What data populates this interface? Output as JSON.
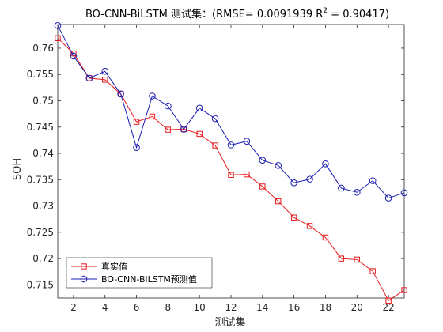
{
  "chart_data": {
    "type": "line",
    "title": "BO-CNN-BiLSTM 测试集：(RMSE= 0.0091939 R",
    "title_sup": "2",
    "title_tail": "  = 0.90417)",
    "xlabel": "测试集",
    "ylabel": "SOH",
    "xlim": [
      1,
      23
    ],
    "ylim": [
      0.7125,
      0.7645
    ],
    "x_ticks": [
      2,
      4,
      6,
      8,
      10,
      12,
      14,
      16,
      18,
      20,
      22
    ],
    "y_ticks": [
      0.715,
      0.72,
      0.725,
      0.73,
      0.735,
      0.74,
      0.745,
      0.75,
      0.755,
      0.76
    ],
    "y_tick_labels": [
      "0.715",
      "0.72",
      "0.725",
      "0.73",
      "0.735",
      "0.74",
      "0.745",
      "0.75",
      "0.755",
      "0.76"
    ],
    "x": [
      1,
      2,
      3,
      4,
      5,
      6,
      7,
      8,
      9,
      10,
      11,
      12,
      13,
      14,
      15,
      16,
      17,
      18,
      19,
      20,
      21,
      22,
      23
    ],
    "legend_position": "bottom-left",
    "grid": false,
    "series": [
      {
        "name": "真实值",
        "color": "#e8191c",
        "marker": "square",
        "values": [
          0.7619,
          0.759,
          0.7543,
          0.754,
          0.7513,
          0.746,
          0.747,
          0.7445,
          0.7446,
          0.7437,
          0.7415,
          0.7359,
          0.736,
          0.7337,
          0.7309,
          0.7278,
          0.7262,
          0.724,
          0.72,
          0.7198,
          0.7176,
          0.712,
          0.714
        ]
      },
      {
        "name": "BO-CNN-BiLSTM预测值",
        "color": "#1b1db2",
        "marker": "circle",
        "values": [
          0.7643,
          0.7585,
          0.7543,
          0.7556,
          0.7513,
          0.7411,
          0.7509,
          0.749,
          0.7446,
          0.7486,
          0.7466,
          0.7416,
          0.7423,
          0.7387,
          0.7377,
          0.7344,
          0.7351,
          0.738,
          0.7334,
          0.7326,
          0.7348,
          0.7315,
          0.7325
        ]
      }
    ]
  }
}
